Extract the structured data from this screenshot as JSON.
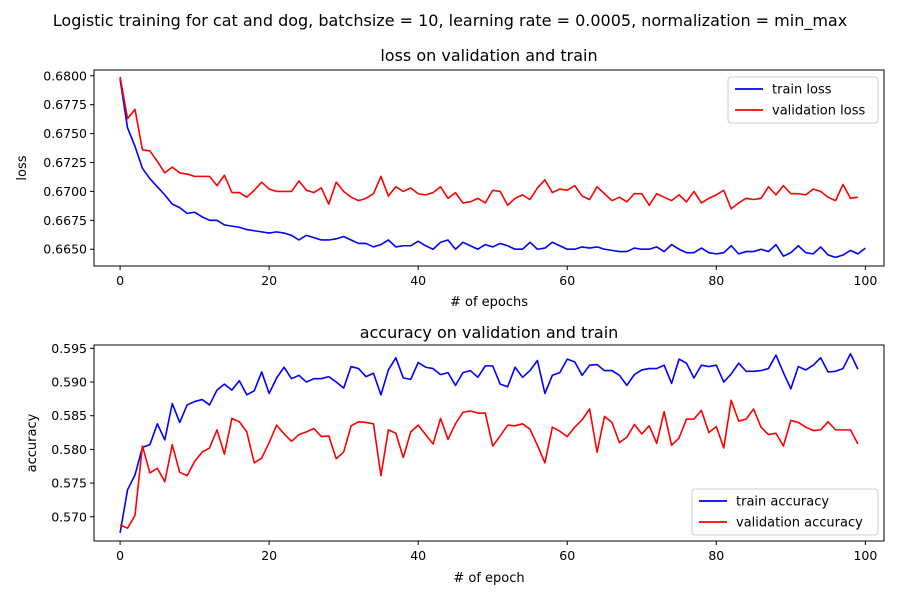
{
  "figure": {
    "suptitle": "Logistic training for cat and dog, batchsize = 10, learning rate = 0.0005, normalization = min_max"
  },
  "chart_data": [
    {
      "type": "line",
      "title": "loss on validation and train",
      "xlabel": "# of epochs",
      "ylabel": "loss",
      "xlim": [
        -3.5,
        102.5
      ],
      "ylim": [
        0.66355,
        0.6805
      ],
      "xticks": [
        0,
        20,
        40,
        60,
        80,
        100
      ],
      "xtick_labels": [
        "0",
        "20",
        "40",
        "60",
        "80",
        "100"
      ],
      "yticks": [
        0.665,
        0.6675,
        0.67,
        0.6725,
        0.675,
        0.6775,
        0.68
      ],
      "ytick_labels": [
        "0.6650",
        "0.6675",
        "0.6700",
        "0.6725",
        "0.6750",
        "0.6775",
        "0.6800"
      ],
      "legend_position": "top-right",
      "series": [
        {
          "name": "train loss",
          "color": "#0000ff",
          "values": [
            0.6797,
            0.6755,
            0.6739,
            0.672,
            0.6711,
            0.6704,
            0.6697,
            0.6689,
            0.6686,
            0.6681,
            0.6682,
            0.6678,
            0.6675,
            0.6675,
            0.6671,
            0.667,
            0.6669,
            0.6667,
            0.6666,
            0.6665,
            0.6664,
            0.6665,
            0.6664,
            0.6662,
            0.6658,
            0.6662,
            0.666,
            0.6658,
            0.6658,
            0.6659,
            0.6661,
            0.6658,
            0.6655,
            0.6655,
            0.6652,
            0.6654,
            0.6658,
            0.6652,
            0.6653,
            0.6653,
            0.6657,
            0.6653,
            0.665,
            0.6656,
            0.6658,
            0.665,
            0.6656,
            0.6653,
            0.665,
            0.6654,
            0.6652,
            0.6655,
            0.6653,
            0.665,
            0.665,
            0.6656,
            0.665,
            0.6651,
            0.6656,
            0.6653,
            0.665,
            0.665,
            0.6652,
            0.6651,
            0.6652,
            0.665,
            0.6649,
            0.6648,
            0.6648,
            0.6651,
            0.665,
            0.665,
            0.6652,
            0.6648,
            0.6654,
            0.665,
            0.6647,
            0.6647,
            0.6651,
            0.6647,
            0.6646,
            0.6647,
            0.6653,
            0.6646,
            0.6648,
            0.6648,
            0.665,
            0.6648,
            0.6654,
            0.6644,
            0.6647,
            0.6653,
            0.6647,
            0.6646,
            0.6652,
            0.6645,
            0.6643,
            0.6645,
            0.6649,
            0.6646,
            0.6651
          ]
        },
        {
          "name": "validation loss",
          "color": "#ff0000",
          "values": [
            0.6799,
            0.6763,
            0.6771,
            0.6736,
            0.6735,
            0.6726,
            0.6716,
            0.6721,
            0.6716,
            0.6715,
            0.6713,
            0.6713,
            0.6713,
            0.6705,
            0.6714,
            0.6699,
            0.6699,
            0.6695,
            0.6701,
            0.6708,
            0.6702,
            0.67,
            0.67,
            0.67,
            0.6709,
            0.6701,
            0.6699,
            0.6703,
            0.6689,
            0.6708,
            0.67,
            0.6695,
            0.6692,
            0.6694,
            0.6698,
            0.6713,
            0.6696,
            0.6704,
            0.67,
            0.6703,
            0.6698,
            0.6697,
            0.6699,
            0.6704,
            0.6694,
            0.6699,
            0.669,
            0.6691,
            0.6694,
            0.669,
            0.6701,
            0.67,
            0.6688,
            0.6694,
            0.6697,
            0.6693,
            0.6703,
            0.671,
            0.6699,
            0.6702,
            0.6701,
            0.6705,
            0.6696,
            0.6693,
            0.6704,
            0.6698,
            0.6692,
            0.6695,
            0.6691,
            0.6698,
            0.6698,
            0.6688,
            0.6698,
            0.6695,
            0.6692,
            0.6697,
            0.6691,
            0.67,
            0.669,
            0.6694,
            0.6697,
            0.6701,
            0.6685,
            0.669,
            0.6694,
            0.6693,
            0.6694,
            0.6704,
            0.6697,
            0.6705,
            0.6698,
            0.6698,
            0.6697,
            0.6702,
            0.67,
            0.6695,
            0.6692,
            0.6706,
            0.6694,
            0.6695
          ]
        }
      ]
    },
    {
      "type": "line",
      "title": "accuracy on validation and train",
      "xlabel": "# of epoch",
      "ylabel": "accuracy",
      "xlim": [
        -3.5,
        102.5
      ],
      "ylim": [
        0.5664,
        0.5955
      ],
      "xticks": [
        0,
        20,
        40,
        60,
        80,
        100
      ],
      "xtick_labels": [
        "0",
        "20",
        "40",
        "60",
        "80",
        "100"
      ],
      "yticks": [
        0.57,
        0.575,
        0.58,
        0.585,
        0.59,
        0.595
      ],
      "ytick_labels": [
        "0.570",
        "0.575",
        "0.580",
        "0.585",
        "0.590",
        "0.595"
      ],
      "legend_position": "bottom-right",
      "series": [
        {
          "name": "train accuracy",
          "color": "#0000ff",
          "values": [
            0.5676,
            0.574,
            0.5762,
            0.5803,
            0.5807,
            0.5838,
            0.5814,
            0.5868,
            0.584,
            0.5866,
            0.5871,
            0.5874,
            0.5866,
            0.5888,
            0.5897,
            0.5888,
            0.5902,
            0.5881,
            0.5887,
            0.5915,
            0.5883,
            0.5906,
            0.5922,
            0.5905,
            0.591,
            0.59,
            0.5905,
            0.5905,
            0.5908,
            0.59,
            0.5891,
            0.5923,
            0.592,
            0.5908,
            0.5913,
            0.5881,
            0.5918,
            0.5936,
            0.5906,
            0.5904,
            0.5929,
            0.5922,
            0.592,
            0.5911,
            0.5914,
            0.5895,
            0.5914,
            0.5917,
            0.5907,
            0.5924,
            0.5924,
            0.5897,
            0.5893,
            0.5922,
            0.5907,
            0.5917,
            0.5932,
            0.5883,
            0.591,
            0.5914,
            0.5934,
            0.593,
            0.591,
            0.5925,
            0.5926,
            0.5917,
            0.5917,
            0.591,
            0.5895,
            0.5911,
            0.5918,
            0.592,
            0.592,
            0.5925,
            0.5898,
            0.5934,
            0.5928,
            0.5906,
            0.5925,
            0.5923,
            0.5925,
            0.59,
            0.5912,
            0.5928,
            0.5916,
            0.5916,
            0.5917,
            0.592,
            0.594,
            0.5914,
            0.589,
            0.5923,
            0.5918,
            0.5925,
            0.5936,
            0.5915,
            0.5916,
            0.592,
            0.5942,
            0.5919
          ]
        },
        {
          "name": "validation accuracy",
          "color": "#ff0000",
          "values": [
            0.5688,
            0.5683,
            0.5702,
            0.5805,
            0.5765,
            0.5772,
            0.5752,
            0.5807,
            0.5766,
            0.5761,
            0.5782,
            0.5796,
            0.5802,
            0.5829,
            0.5793,
            0.5846,
            0.5841,
            0.5826,
            0.578,
            0.5787,
            0.581,
            0.5836,
            0.5823,
            0.5812,
            0.5822,
            0.5826,
            0.5831,
            0.5819,
            0.582,
            0.5786,
            0.5796,
            0.5835,
            0.5841,
            0.584,
            0.5838,
            0.5761,
            0.5829,
            0.5824,
            0.5788,
            0.5826,
            0.5836,
            0.5822,
            0.5808,
            0.5846,
            0.5815,
            0.5838,
            0.5855,
            0.5857,
            0.5854,
            0.5854,
            0.5805,
            0.582,
            0.5836,
            0.5835,
            0.5838,
            0.583,
            0.5806,
            0.578,
            0.5833,
            0.5827,
            0.5819,
            0.5833,
            0.5844,
            0.586,
            0.5796,
            0.5849,
            0.584,
            0.581,
            0.5818,
            0.5837,
            0.5823,
            0.5835,
            0.5809,
            0.5856,
            0.5806,
            0.5817,
            0.5845,
            0.5845,
            0.5858,
            0.5825,
            0.5834,
            0.5802,
            0.5873,
            0.5842,
            0.5845,
            0.586,
            0.5833,
            0.5822,
            0.5824,
            0.5805,
            0.5843,
            0.584,
            0.5833,
            0.5828,
            0.5829,
            0.5841,
            0.5829,
            0.5829,
            0.5829,
            0.5808
          ]
        }
      ]
    }
  ]
}
